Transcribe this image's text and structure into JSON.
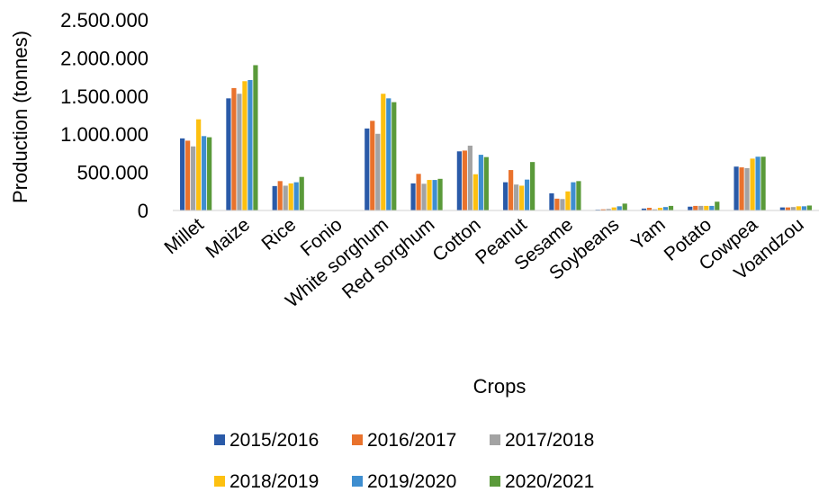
{
  "chart_data": {
    "type": "bar",
    "title": "",
    "xlabel": "Crops",
    "ylabel": "Production (tonnes)",
    "ylim": [
      0,
      2500000
    ],
    "yticks": [
      0,
      500000,
      1000000,
      1500000,
      2000000,
      2500000
    ],
    "ytick_labels": [
      "0",
      "500.000",
      "1.000.000",
      "1.500.000",
      "2.000.000",
      "2.500.000"
    ],
    "grid": false,
    "legend_position": "bottom",
    "categories": [
      "Millet",
      "Maize",
      "Rice",
      "Fonio",
      "White sorghum",
      "Red sorghum",
      "Cotton",
      "Peanut",
      "Sesame",
      "Soybeans",
      "Yam",
      "Potato",
      "Cowpea",
      "Voandzou"
    ],
    "series": [
      {
        "name": "2015/2016",
        "color": "#2a5aa8",
        "values": [
          945000,
          1470000,
          320000,
          0,
          1075000,
          355000,
          775000,
          370000,
          225000,
          10000,
          25000,
          50000,
          575000,
          40000
        ]
      },
      {
        "name": "2016/2017",
        "color": "#e9722c",
        "values": [
          915000,
          1605000,
          385000,
          0,
          1175000,
          480000,
          785000,
          530000,
          155000,
          15000,
          35000,
          60000,
          565000,
          40000
        ]
      },
      {
        "name": "2017/2018",
        "color": "#a3a3a3",
        "values": [
          840000,
          1530000,
          325000,
          0,
          1005000,
          350000,
          850000,
          340000,
          150000,
          20000,
          15000,
          60000,
          555000,
          45000
        ]
      },
      {
        "name": "2018/2019",
        "color": "#fdc010",
        "values": [
          1195000,
          1695000,
          355000,
          0,
          1530000,
          400000,
          475000,
          325000,
          250000,
          40000,
          35000,
          60000,
          680000,
          55000
        ]
      },
      {
        "name": "2019/2020",
        "color": "#3e8ed0",
        "values": [
          975000,
          1710000,
          370000,
          0,
          1470000,
          400000,
          730000,
          405000,
          370000,
          55000,
          45000,
          60000,
          705000,
          55000
        ]
      },
      {
        "name": "2020/2021",
        "color": "#5a9a3a",
        "values": [
          960000,
          1905000,
          440000,
          0,
          1420000,
          415000,
          700000,
          635000,
          385000,
          90000,
          60000,
          115000,
          705000,
          65000
        ]
      }
    ]
  }
}
